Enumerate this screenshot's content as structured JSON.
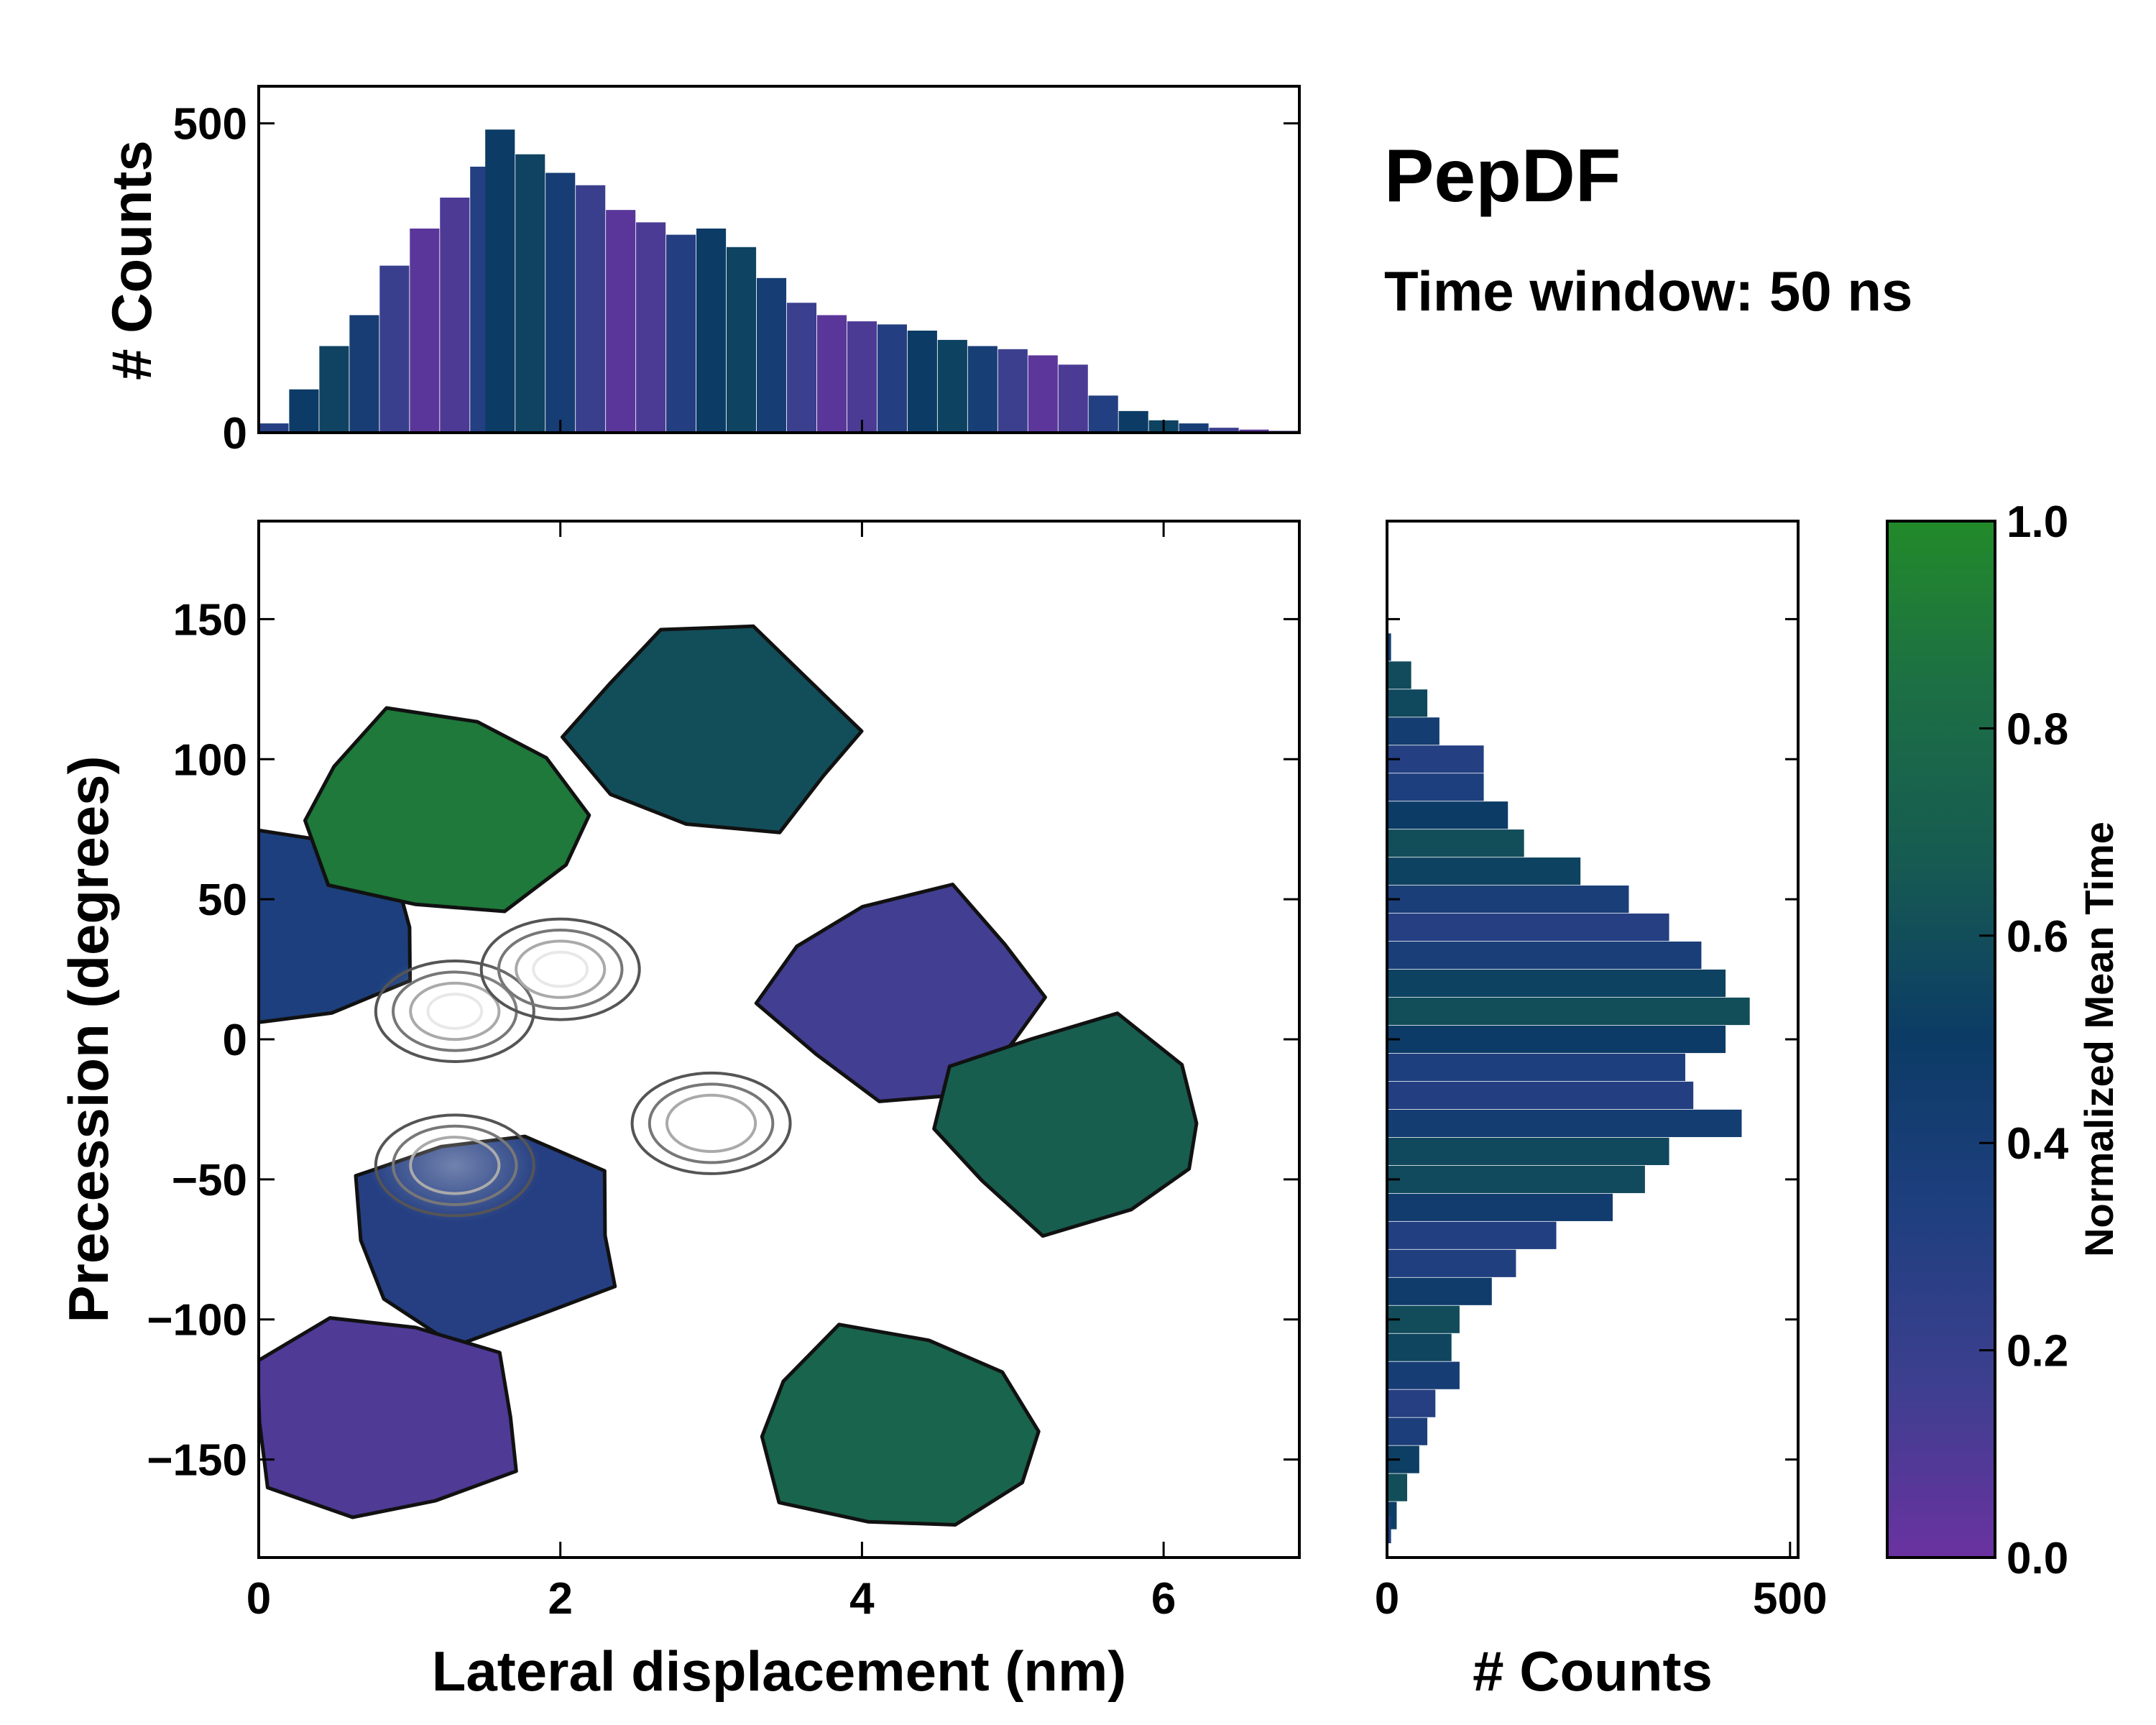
{
  "chart_data": [
    {
      "type": "heatmap",
      "name": "main-2d-histogram",
      "title": "PepDF",
      "subtitle": "Time window: 50 ns",
      "xlabel": "Lateral displacement (nm)",
      "ylabel": "Precession (degrees)",
      "xlim": [
        0,
        6.9
      ],
      "ylim": [
        -185,
        185
      ],
      "xticks": [
        0,
        2,
        4,
        6
      ],
      "xtick_labels": [
        "0",
        "2",
        "4",
        "6"
      ],
      "yticks": [
        150,
        100,
        50,
        0,
        -50,
        -100,
        -150
      ],
      "ytick_labels": [
        "150",
        "100",
        "50",
        "0",
        "−50",
        "−100",
        "−150"
      ],
      "color_metric": "Normalized Mean Time",
      "regions": [
        {
          "x": 0.1,
          "y": 40,
          "value": 0.35,
          "label": "upper-left lobe"
        },
        {
          "x": 1.2,
          "y": 80,
          "value": 0.9,
          "label": "upper green band"
        },
        {
          "x": 3.0,
          "y": 110,
          "value": 0.6,
          "label": "top cap"
        },
        {
          "x": 4.3,
          "y": 15,
          "value": 0.15,
          "label": "right lobe"
        },
        {
          "x": 5.4,
          "y": -30,
          "value": 0.7,
          "label": "lower-right lobe"
        },
        {
          "x": 1.5,
          "y": -70,
          "value": 0.3,
          "label": "lower-left core"
        },
        {
          "x": 0.8,
          "y": -135,
          "value": 0.1,
          "label": "bottom-left patch"
        },
        {
          "x": 4.2,
          "y": -140,
          "value": 0.75,
          "label": "bottom green band"
        }
      ],
      "density_peaks": [
        {
          "x": 1.3,
          "y": 10,
          "level": "high"
        },
        {
          "x": 2.0,
          "y": 25,
          "level": "high"
        },
        {
          "x": 3.0,
          "y": -30,
          "level": "medium"
        },
        {
          "x": 1.3,
          "y": -45,
          "level": "medium"
        }
      ]
    },
    {
      "type": "bar",
      "name": "top-marginal-histogram",
      "xlabel": "",
      "ylabel": "# Counts",
      "xlim": [
        0,
        6.9
      ],
      "ylim": [
        0,
        560
      ],
      "yticks": [
        0,
        500
      ],
      "ytick_labels": [
        "0",
        "500"
      ],
      "x": [
        0.1,
        0.3,
        0.5,
        0.7,
        0.9,
        1.1,
        1.3,
        1.5,
        1.6,
        1.8,
        2.0,
        2.2,
        2.4,
        2.6,
        2.8,
        3.0,
        3.2,
        3.4,
        3.6,
        3.8,
        4.0,
        4.2,
        4.4,
        4.6,
        4.8,
        5.0,
        5.2,
        5.4,
        5.6,
        5.8,
        6.0,
        6.2,
        6.4,
        6.6,
        6.8
      ],
      "values": [
        15,
        70,
        140,
        190,
        270,
        330,
        380,
        430,
        490,
        450,
        420,
        400,
        360,
        340,
        320,
        330,
        300,
        250,
        210,
        190,
        180,
        175,
        165,
        150,
        140,
        135,
        125,
        110,
        60,
        35,
        20,
        15,
        8,
        5,
        3
      ]
    },
    {
      "type": "bar",
      "orientation": "horizontal",
      "name": "right-marginal-histogram",
      "xlabel": "# Counts",
      "ylabel": "",
      "xlim": [
        0,
        510
      ],
      "ylim": [
        -185,
        185
      ],
      "xticks": [
        0,
        500
      ],
      "xtick_labels": [
        "0",
        "500"
      ],
      "y": [
        140,
        130,
        120,
        110,
        100,
        90,
        80,
        70,
        60,
        50,
        40,
        30,
        20,
        10,
        0,
        -10,
        -20,
        -30,
        -40,
        -50,
        -60,
        -70,
        -80,
        -90,
        -100,
        -110,
        -120,
        -130,
        -140,
        -150,
        -160,
        -170,
        -175
      ],
      "values": [
        5,
        30,
        50,
        65,
        120,
        120,
        150,
        170,
        240,
        300,
        350,
        390,
        420,
        450,
        420,
        370,
        380,
        440,
        350,
        320,
        280,
        210,
        160,
        130,
        90,
        80,
        90,
        60,
        50,
        40,
        25,
        12,
        5
      ]
    },
    {
      "type": "colorbar",
      "name": "colorbar",
      "label": "Normalized Mean Time",
      "lim": [
        0.0,
        1.0
      ],
      "ticks": [
        0.0,
        0.2,
        0.4,
        0.6,
        0.8,
        1.0
      ],
      "tick_labels": [
        "0.0",
        "0.2",
        "0.4",
        "0.6",
        "0.8",
        "1.0"
      ],
      "colors": [
        "#6a32a0",
        "#3d3f8f",
        "#1f3f7f",
        "#0c3b66",
        "#165a52",
        "#1c6e45",
        "#228a2a"
      ]
    }
  ]
}
